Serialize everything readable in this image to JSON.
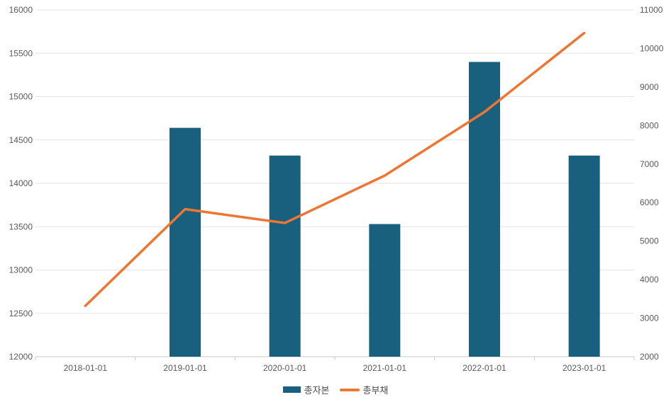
{
  "chart_data": {
    "type": "bar+line",
    "title": "",
    "categories": [
      "2018-01-01",
      "2019-01-01",
      "2020-01-01",
      "2021-01-01",
      "2022-01-01",
      "2023-01-01"
    ],
    "series": [
      {
        "name": "총자본",
        "type": "bar",
        "axis": "left",
        "color": "#19607E",
        "values": [
          null,
          14640,
          14320,
          13530,
          15400,
          14320
        ]
      },
      {
        "name": "총부채",
        "type": "line",
        "axis": "right",
        "color": "#ED7632",
        "values": [
          3320,
          5830,
          5470,
          6700,
          8350,
          10400
        ]
      }
    ],
    "left_axis": {
      "min": 12000,
      "max": 16000,
      "step": 500,
      "tick_labels": [
        "16000",
        "15500",
        "15000",
        "14500",
        "14000",
        "13500",
        "13000",
        "12500",
        "12000"
      ]
    },
    "right_axis": {
      "min": 2000,
      "max": 11000,
      "step": 1000,
      "tick_labels": [
        "11000",
        "10000",
        "9000",
        "8000",
        "7000",
        "6000",
        "5000",
        "4000",
        "3000",
        "2000"
      ]
    },
    "grid": true,
    "legend_position": "bottom",
    "colors": {
      "grid_line": "#E3E3E3",
      "axis_line": "#C9C9C9",
      "tick_text": "#595959",
      "background": "#FFFFFF"
    }
  }
}
